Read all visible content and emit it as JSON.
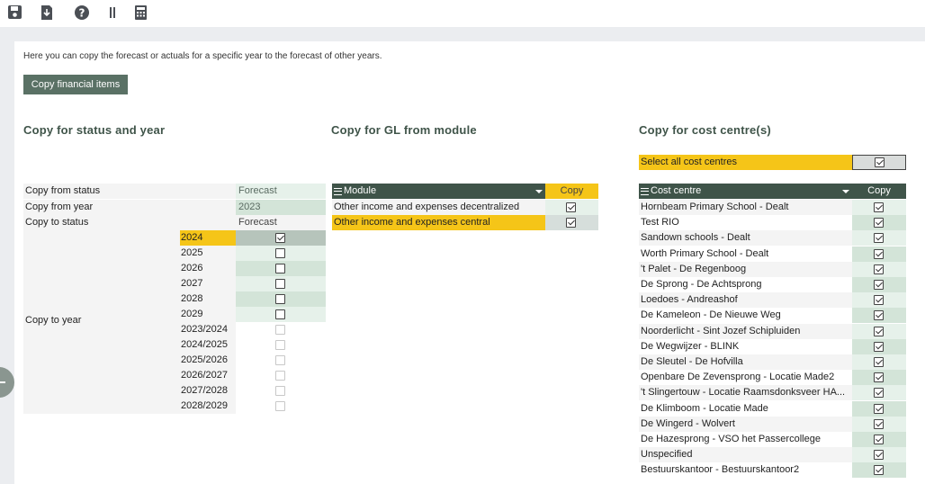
{
  "toolbar": {
    "icons": [
      "save-icon",
      "download-icon",
      "help-icon",
      "pause-icon",
      "calculator-icon"
    ]
  },
  "intro_text": "Here you can copy the forecast or actuals for a specific year to the forecast of other years.",
  "copy_button_label": "Copy financial items",
  "section1": {
    "title": "Copy for status and year",
    "copy_from_status_label": "Copy from status",
    "copy_from_status_value": "Forecast",
    "copy_from_year_label": "Copy from year",
    "copy_from_year_value": "2023",
    "copy_to_status_label": "Copy to status",
    "copy_to_status_value": "Forecast",
    "copy_to_year_label": "Copy to year",
    "years": [
      {
        "label": "2024",
        "checked": true,
        "highlight": true
      },
      {
        "label": "2025",
        "checked": false
      },
      {
        "label": "2026",
        "checked": false
      },
      {
        "label": "2027",
        "checked": false
      },
      {
        "label": "2028",
        "checked": false
      },
      {
        "label": "2029",
        "checked": false
      },
      {
        "label": "2023/2024",
        "checked": false,
        "disabled": true
      },
      {
        "label": "2024/2025",
        "checked": false,
        "disabled": true
      },
      {
        "label": "2025/2026",
        "checked": false,
        "disabled": true
      },
      {
        "label": "2026/2027",
        "checked": false,
        "disabled": true
      },
      {
        "label": "2027/2028",
        "checked": false,
        "disabled": true
      },
      {
        "label": "2028/2029",
        "checked": false,
        "disabled": true
      }
    ]
  },
  "section2": {
    "title": "Copy for GL from module",
    "header_module": "Module",
    "header_copy": "Copy",
    "rows": [
      {
        "label": "Other income and expenses decentralized",
        "checked": true
      },
      {
        "label": "Other income and expenses central",
        "checked": true,
        "highlight": true
      }
    ]
  },
  "section3": {
    "title": "Copy for cost centre(s)",
    "select_all_label": "Select all cost centres",
    "select_all_checked": true,
    "header_cost_centre": "Cost centre",
    "header_copy": "Copy",
    "rows": [
      {
        "label": "Hornbeam Primary School - Dealt",
        "checked": true
      },
      {
        "label": "Test RIO",
        "checked": true
      },
      {
        "label": "Sandown schools - Dealt",
        "checked": true
      },
      {
        "label": "Worth Primary School - Dealt",
        "checked": true
      },
      {
        "label": "'t Palet - De Regenboog",
        "checked": true
      },
      {
        "label": "De Sprong - De Achtsprong",
        "checked": true
      },
      {
        "label": "Loedoes - Andreashof",
        "checked": true
      },
      {
        "label": "De Kameleon - De Nieuwe Weg",
        "checked": true
      },
      {
        "label": "Noorderlicht - Sint Jozef Schipluiden",
        "checked": true
      },
      {
        "label": "De Wegwijzer - BLINK",
        "checked": true
      },
      {
        "label": "De Sleutel - De Hofvilla",
        "checked": true
      },
      {
        "label": "Openbare De Zevensprong - Locatie Made2",
        "checked": true
      },
      {
        "label": "'t Slingertouw - Locatie Raamsdonksveer HA...",
        "checked": true
      },
      {
        "label": "De Klimboom - Locatie Made",
        "checked": true
      },
      {
        "label": "De Wingerd - Wolvert",
        "checked": true
      },
      {
        "label": "De Hazesprong - VSO het Passercollege",
        "checked": true
      },
      {
        "label": "Unspecified",
        "checked": true
      },
      {
        "label": "Bestuurskantoor - Bestuurskantoor2",
        "checked": true
      }
    ]
  },
  "colors": {
    "accent_yellow": "#f5c518",
    "header_green": "#3f5449",
    "button_green": "#5a7165",
    "cell_green": "#d3e4d8",
    "cell_light": "#e6f1ea"
  }
}
